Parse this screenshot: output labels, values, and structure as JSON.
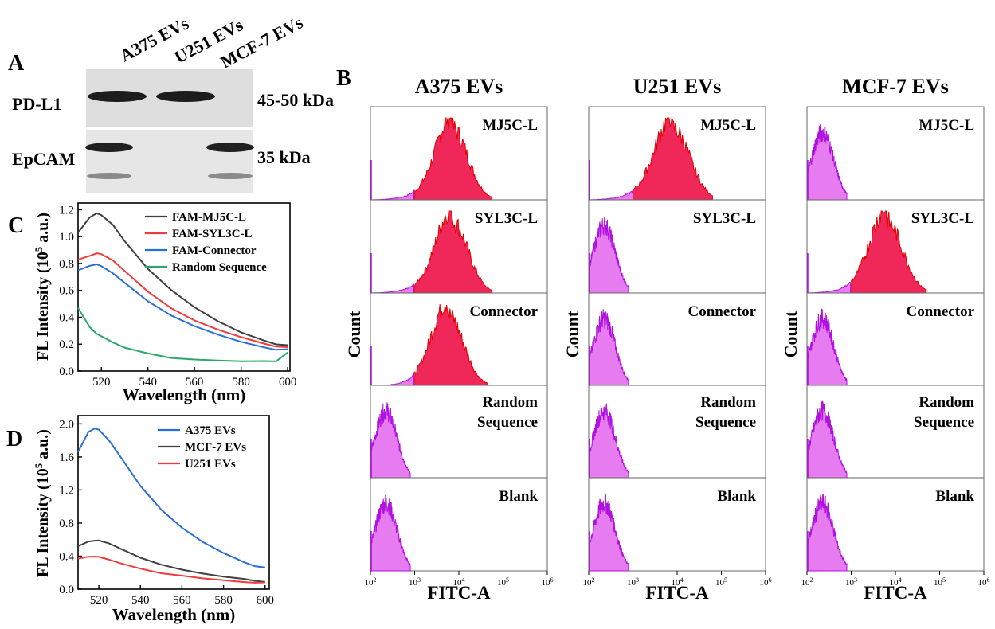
{
  "colors": {
    "positive": "#f0285a",
    "positive_edge": "#e00000",
    "negative": "#e77bf0",
    "negative_edge": "#b010e0"
  },
  "panel_a": {
    "letter": "A",
    "lanes": [
      "A375 EVs",
      "U251 EVs",
      "MCF-7 EVs"
    ],
    "proteins": [
      {
        "name": "PD-L1",
        "size": "45-50 kDa",
        "bands": [
          1,
          1,
          0
        ]
      },
      {
        "name": "EpCAM",
        "size": "35 kDa",
        "bands": [
          1,
          0,
          1
        ]
      }
    ]
  },
  "panel_b": {
    "letter": "B",
    "ylabel": "Count",
    "xlabel": "FITC-A",
    "row_labels": [
      [
        "MJ5C-L"
      ],
      [
        "SYL3C-L"
      ],
      [
        "Connector"
      ],
      [
        "Random",
        "Sequence"
      ],
      [
        "Blank"
      ]
    ],
    "x_ticks": [
      "2",
      "3",
      "4",
      "5",
      "6"
    ],
    "x_tick_base": "10",
    "x_range_log": [
      2,
      6
    ],
    "columns": [
      {
        "title": "A375 EVs",
        "rows": [
          {
            "positive": true,
            "center_log": 3.85,
            "width_log": 0.35
          },
          {
            "positive": true,
            "center_log": 3.85,
            "width_log": 0.35
          },
          {
            "positive": true,
            "center_log": 3.75,
            "width_log": 0.35
          },
          {
            "positive": false,
            "center_log": 2.35,
            "width_log": 0.25
          },
          {
            "positive": false,
            "center_log": 2.35,
            "width_log": 0.25
          }
        ]
      },
      {
        "title": "U251 EVs",
        "rows": [
          {
            "positive": true,
            "center_log": 3.9,
            "width_log": 0.38
          },
          {
            "positive": false,
            "center_log": 2.35,
            "width_log": 0.25
          },
          {
            "positive": false,
            "center_log": 2.35,
            "width_log": 0.25
          },
          {
            "positive": false,
            "center_log": 2.35,
            "width_log": 0.25
          },
          {
            "positive": false,
            "center_log": 2.35,
            "width_log": 0.25
          }
        ]
      },
      {
        "title": "MCF-7 EVs",
        "rows": [
          {
            "positive": false,
            "center_log": 2.35,
            "width_log": 0.25
          },
          {
            "positive": true,
            "center_log": 3.8,
            "width_log": 0.36
          },
          {
            "positive": false,
            "center_log": 2.35,
            "width_log": 0.25
          },
          {
            "positive": false,
            "center_log": 2.35,
            "width_log": 0.25
          },
          {
            "positive": false,
            "center_log": 2.35,
            "width_log": 0.25
          }
        ]
      }
    ]
  },
  "chart_data": [
    {
      "type": "line",
      "panel": "C",
      "xlabel": "Wavelength (nm)",
      "ylabel": "FL Intensity (10",
      "ylabel_exp": "5",
      "ylabel_tail": " a.u.)",
      "xlim": [
        510,
        601
      ],
      "ylim": [
        0,
        1.25
      ],
      "x_ticks": [
        520,
        540,
        560,
        580,
        600
      ],
      "y_ticks": [
        "0.0",
        "0.2",
        "0.4",
        "0.6",
        "0.8",
        "1.0",
        "1.2"
      ],
      "x": [
        510,
        515,
        518,
        520,
        525,
        530,
        540,
        550,
        560,
        570,
        580,
        590,
        595,
        600
      ],
      "series": [
        {
          "name": "FAM-MJ5C-L",
          "color": "#404040",
          "values": [
            1.03,
            1.14,
            1.17,
            1.16,
            1.09,
            0.97,
            0.76,
            0.6,
            0.47,
            0.37,
            0.29,
            0.23,
            0.2,
            0.19
          ]
        },
        {
          "name": "FAM-SYL3C-L",
          "color": "#ef3b3b",
          "values": [
            0.83,
            0.86,
            0.88,
            0.87,
            0.82,
            0.74,
            0.59,
            0.47,
            0.38,
            0.31,
            0.25,
            0.2,
            0.18,
            0.18
          ]
        },
        {
          "name": "FAM-Connector",
          "color": "#2a6fd6",
          "values": [
            0.75,
            0.78,
            0.79,
            0.78,
            0.73,
            0.66,
            0.52,
            0.41,
            0.33,
            0.27,
            0.22,
            0.18,
            0.16,
            0.16
          ]
        },
        {
          "name": "Random Sequence",
          "color": "#2aa86a",
          "values": [
            0.47,
            0.33,
            0.28,
            0.26,
            0.21,
            0.17,
            0.13,
            0.1,
            0.09,
            0.08,
            0.07,
            0.07,
            0.07,
            0.14
          ]
        }
      ]
    },
    {
      "type": "line",
      "panel": "D",
      "xlabel": "Wavelength (nm)",
      "ylabel": "FL Intensity (10",
      "ylabel_exp": "5",
      "ylabel_tail": " a.u.)",
      "xlim": [
        510,
        602
      ],
      "ylim": [
        0,
        2.1
      ],
      "x_ticks": [
        520,
        540,
        560,
        580,
        600
      ],
      "y_ticks": [
        "0.0",
        "0.4",
        "0.8",
        "1.2",
        "1.6",
        "2.0"
      ],
      "x": [
        510,
        515,
        518,
        520,
        525,
        530,
        540,
        550,
        560,
        570,
        580,
        590,
        595,
        600
      ],
      "series": [
        {
          "name": "A375 EVs",
          "color": "#2a6fd6",
          "values": [
            1.66,
            1.9,
            1.94,
            1.93,
            1.8,
            1.62,
            1.25,
            0.96,
            0.74,
            0.57,
            0.44,
            0.33,
            0.28,
            0.26
          ]
        },
        {
          "name": "MCF-7 EVs",
          "color": "#404040",
          "values": [
            0.52,
            0.58,
            0.59,
            0.59,
            0.55,
            0.49,
            0.38,
            0.3,
            0.24,
            0.19,
            0.15,
            0.12,
            0.1,
            0.09
          ]
        },
        {
          "name": "U251 EVs",
          "color": "#ef3b3b",
          "values": [
            0.37,
            0.39,
            0.39,
            0.39,
            0.36,
            0.32,
            0.25,
            0.19,
            0.16,
            0.13,
            0.11,
            0.09,
            0.08,
            0.08
          ]
        }
      ]
    }
  ]
}
